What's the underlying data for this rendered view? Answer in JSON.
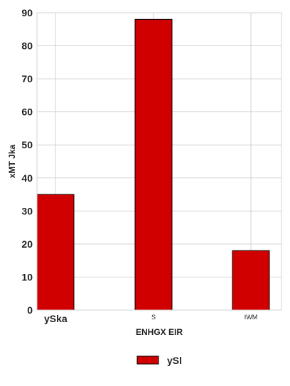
{
  "chart_data": {
    "type": "bar",
    "categories": [
      "ySka",
      "S",
      "IWM"
    ],
    "series": [
      {
        "name": "ySl",
        "values": [
          35,
          88,
          18
        ],
        "color": "#d10000"
      }
    ],
    "title": "",
    "xlabel": "ENHGX EIR",
    "ylabel": "xMT Jka",
    "ylim": [
      0,
      90
    ],
    "yticks": [
      0,
      10,
      20,
      30,
      40,
      50,
      60,
      70,
      80,
      90
    ],
    "grid": true,
    "legend": "bottom-center",
    "bar_edge_color": "#000000",
    "grid_color": "#d3d3d3"
  }
}
